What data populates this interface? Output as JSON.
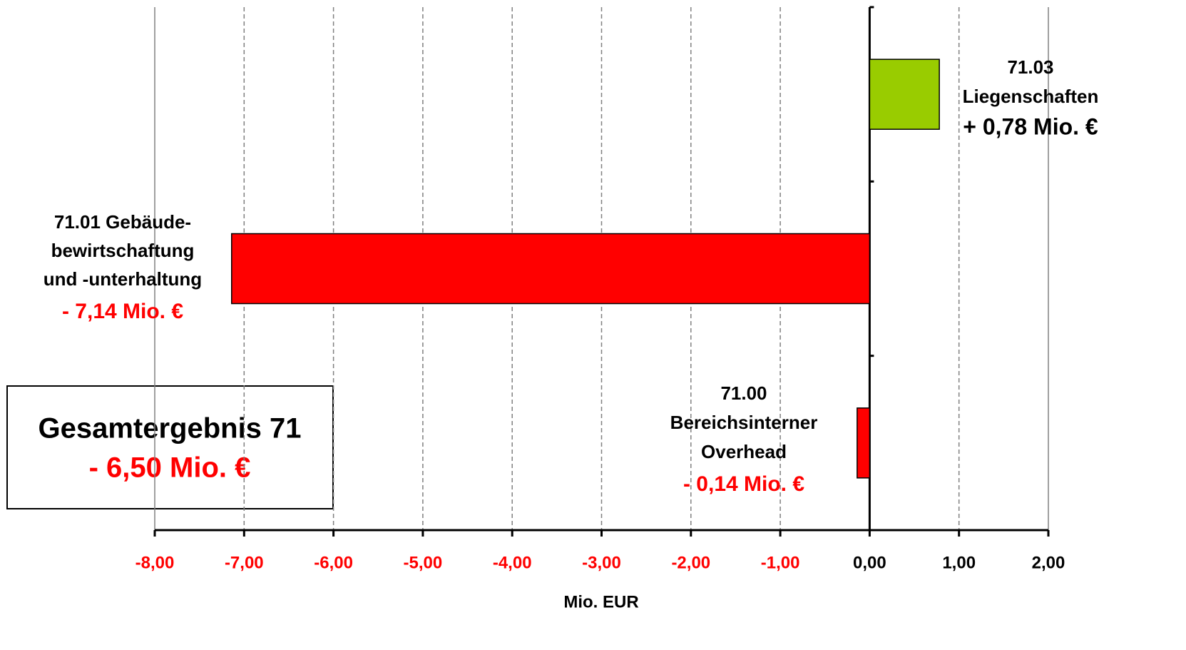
{
  "chart_data": {
    "type": "hbar",
    "x_label": "Mio. EUR",
    "categories": [
      [
        "71.03",
        "Liegenschaften"
      ],
      [
        "71.01 Gebäude-",
        "bewirtschaftung",
        "und -unterhaltung"
      ],
      [
        "71.00",
        "Bereichsinterner",
        "Overhead"
      ]
    ],
    "values": [
      0.78,
      -7.14,
      -0.14
    ],
    "value_labels": [
      "+ 0,78 Mio. €",
      "- 7,14 Mio. €",
      "- 0,14 Mio. €"
    ],
    "colors": [
      "#99cc00",
      "#ff0000",
      "#ff0000"
    ],
    "xlim": [
      -8,
      2
    ],
    "xticks": [
      {
        "value": -8,
        "label": "-8,00"
      },
      {
        "value": -7,
        "label": "-7,00"
      },
      {
        "value": -6,
        "label": "-6,00"
      },
      {
        "value": -5,
        "label": "-5,00"
      },
      {
        "value": -4,
        "label": "-4,00"
      },
      {
        "value": -3,
        "label": "-3,00"
      },
      {
        "value": -2,
        "label": "-2,00"
      },
      {
        "value": -1,
        "label": "-1,00"
      },
      {
        "value": 0,
        "label": "0,00"
      },
      {
        "value": 1,
        "label": "1,00"
      },
      {
        "value": 2,
        "label": "2,00"
      }
    ],
    "grid": true,
    "annotation": {
      "text": "Gesamtergebnis 71",
      "value_label": "- 6,50 Mio. €"
    }
  }
}
